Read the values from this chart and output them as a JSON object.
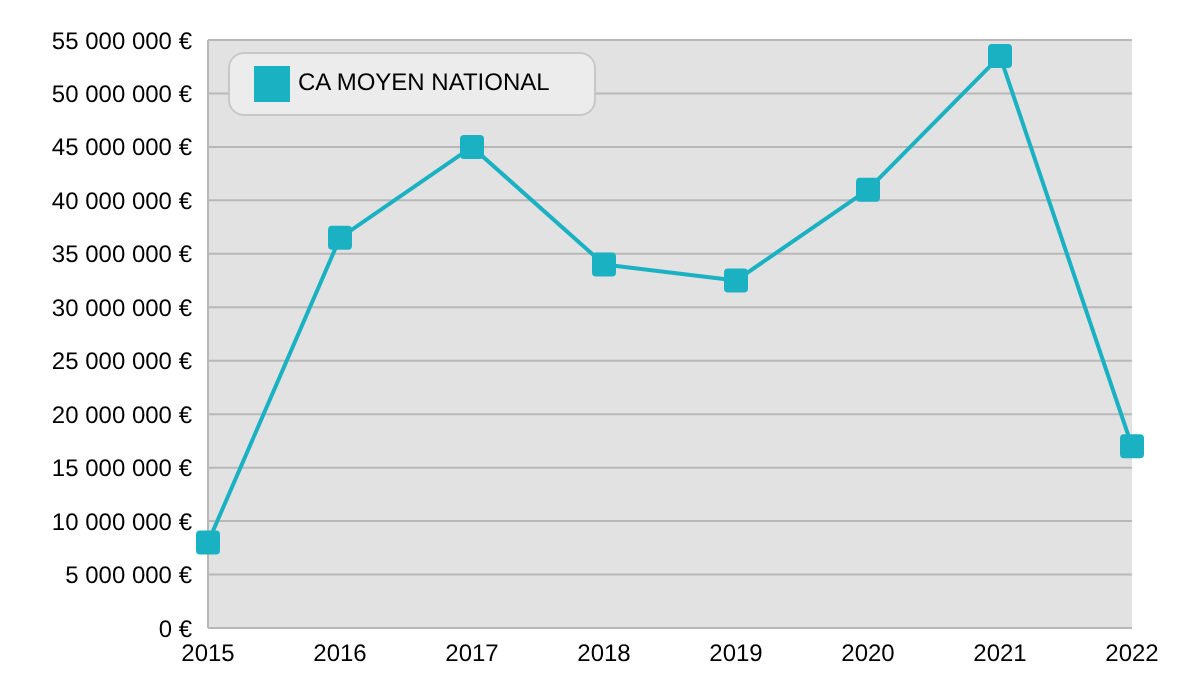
{
  "chart_data": {
    "type": "line",
    "categories": [
      "2015",
      "2016",
      "2017",
      "2018",
      "2019",
      "2020",
      "2021",
      "2022"
    ],
    "series": [
      {
        "name": "CA MOYEN NATIONAL",
        "color": "#1ab2c2",
        "values": [
          8000000,
          36500000,
          45000000,
          34000000,
          32500000,
          41000000,
          53500000,
          17000000
        ]
      }
    ],
    "ylim": [
      0,
      55000000
    ],
    "yticks": [
      {
        "value": 0,
        "label": "0 €"
      },
      {
        "value": 5000000,
        "label": "5 000 000 €"
      },
      {
        "value": 10000000,
        "label": "10 000 000 €"
      },
      {
        "value": 15000000,
        "label": "15 000 000 €"
      },
      {
        "value": 20000000,
        "label": "20 000 000 €"
      },
      {
        "value": 25000000,
        "label": "25 000 000 €"
      },
      {
        "value": 30000000,
        "label": "30 000 000 €"
      },
      {
        "value": 35000000,
        "label": "35 000 000 €"
      },
      {
        "value": 40000000,
        "label": "40 000 000 €"
      },
      {
        "value": 45000000,
        "label": "45 000 000 €"
      },
      {
        "value": 50000000,
        "label": "50 000 000 €"
      },
      {
        "value": 55000000,
        "label": "55 000 000 €"
      }
    ],
    "grid": "y",
    "legend": "top left",
    "marker": "square",
    "line_style": "solid"
  }
}
